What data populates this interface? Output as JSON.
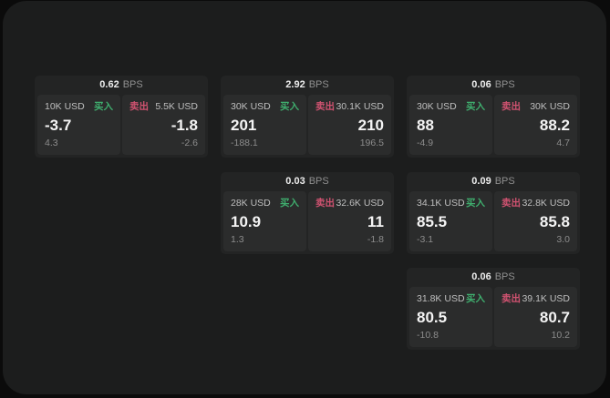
{
  "theme": {
    "page_bg": "#0b0b0b",
    "panel_bg": "#1c1d1d",
    "card_bg": "#232424",
    "tile_bg": "#2b2c2c",
    "buy_color": "#3fae6e",
    "sell_color": "#cf5270",
    "value_color": "#f4f4f4",
    "muted_color": "#8c8c8c"
  },
  "units": {
    "bps": "BPS"
  },
  "labels": {
    "buy": "买入",
    "sell": "卖出"
  },
  "cards": [
    {
      "bps": "0.62",
      "buy": {
        "size": "10K USD",
        "value": "-3.7",
        "sub": "4.3"
      },
      "sell": {
        "size": "5.5K USD",
        "value": "-1.8",
        "sub": "-2.6"
      }
    },
    {
      "bps": "2.92",
      "buy": {
        "size": "30K USD",
        "value": "201",
        "sub": "-188.1"
      },
      "sell": {
        "size": "30.1K USD",
        "value": "210",
        "sub": "196.5"
      }
    },
    {
      "bps": "0.06",
      "buy": {
        "size": "30K USD",
        "value": "88",
        "sub": "-4.9"
      },
      "sell": {
        "size": "30K USD",
        "value": "88.2",
        "sub": "4.7"
      }
    },
    {
      "bps": "0.03",
      "buy": {
        "size": "28K USD",
        "value": "10.9",
        "sub": "1.3"
      },
      "sell": {
        "size": "32.6K USD",
        "value": "11",
        "sub": "-1.8"
      }
    },
    {
      "bps": "0.09",
      "buy": {
        "size": "34.1K USD",
        "value": "85.5",
        "sub": "-3.1"
      },
      "sell": {
        "size": "32.8K USD",
        "value": "85.8",
        "sub": "3.0"
      }
    },
    {
      "bps": "0.06",
      "buy": {
        "size": "31.8K USD",
        "value": "80.5",
        "sub": "-10.8"
      },
      "sell": {
        "size": "39.1K USD",
        "value": "80.7",
        "sub": "10.2"
      }
    }
  ]
}
